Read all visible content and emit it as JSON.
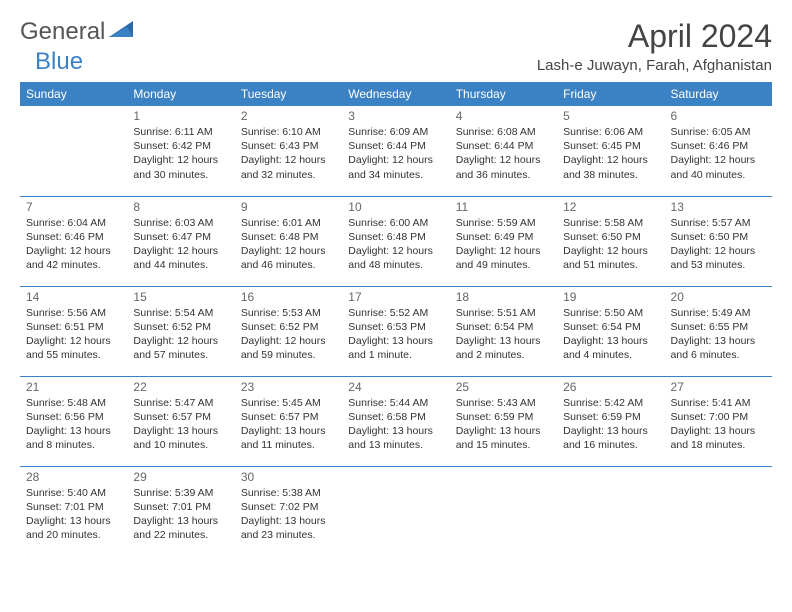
{
  "logo": {
    "text1": "General",
    "text2": "Blue"
  },
  "title": "April 2024",
  "location": "Lash-e Juwayn, Farah, Afghanistan",
  "colors": {
    "header_bg": "#3b82c4",
    "header_text": "#ffffff",
    "border": "#3b82c4",
    "text": "#333333",
    "logo_gray": "#555555",
    "logo_blue": "#3b82c4"
  },
  "day_headers": [
    "Sunday",
    "Monday",
    "Tuesday",
    "Wednesday",
    "Thursday",
    "Friday",
    "Saturday"
  ],
  "weeks": [
    [
      null,
      {
        "num": "1",
        "sunrise": "6:11 AM",
        "sunset": "6:42 PM",
        "daylight": "12 hours and 30 minutes."
      },
      {
        "num": "2",
        "sunrise": "6:10 AM",
        "sunset": "6:43 PM",
        "daylight": "12 hours and 32 minutes."
      },
      {
        "num": "3",
        "sunrise": "6:09 AM",
        "sunset": "6:44 PM",
        "daylight": "12 hours and 34 minutes."
      },
      {
        "num": "4",
        "sunrise": "6:08 AM",
        "sunset": "6:44 PM",
        "daylight": "12 hours and 36 minutes."
      },
      {
        "num": "5",
        "sunrise": "6:06 AM",
        "sunset": "6:45 PM",
        "daylight": "12 hours and 38 minutes."
      },
      {
        "num": "6",
        "sunrise": "6:05 AM",
        "sunset": "6:46 PM",
        "daylight": "12 hours and 40 minutes."
      }
    ],
    [
      {
        "num": "7",
        "sunrise": "6:04 AM",
        "sunset": "6:46 PM",
        "daylight": "12 hours and 42 minutes."
      },
      {
        "num": "8",
        "sunrise": "6:03 AM",
        "sunset": "6:47 PM",
        "daylight": "12 hours and 44 minutes."
      },
      {
        "num": "9",
        "sunrise": "6:01 AM",
        "sunset": "6:48 PM",
        "daylight": "12 hours and 46 minutes."
      },
      {
        "num": "10",
        "sunrise": "6:00 AM",
        "sunset": "6:48 PM",
        "daylight": "12 hours and 48 minutes."
      },
      {
        "num": "11",
        "sunrise": "5:59 AM",
        "sunset": "6:49 PM",
        "daylight": "12 hours and 49 minutes."
      },
      {
        "num": "12",
        "sunrise": "5:58 AM",
        "sunset": "6:50 PM",
        "daylight": "12 hours and 51 minutes."
      },
      {
        "num": "13",
        "sunrise": "5:57 AM",
        "sunset": "6:50 PM",
        "daylight": "12 hours and 53 minutes."
      }
    ],
    [
      {
        "num": "14",
        "sunrise": "5:56 AM",
        "sunset": "6:51 PM",
        "daylight": "12 hours and 55 minutes."
      },
      {
        "num": "15",
        "sunrise": "5:54 AM",
        "sunset": "6:52 PM",
        "daylight": "12 hours and 57 minutes."
      },
      {
        "num": "16",
        "sunrise": "5:53 AM",
        "sunset": "6:52 PM",
        "daylight": "12 hours and 59 minutes."
      },
      {
        "num": "17",
        "sunrise": "5:52 AM",
        "sunset": "6:53 PM",
        "daylight": "13 hours and 1 minute."
      },
      {
        "num": "18",
        "sunrise": "5:51 AM",
        "sunset": "6:54 PM",
        "daylight": "13 hours and 2 minutes."
      },
      {
        "num": "19",
        "sunrise": "5:50 AM",
        "sunset": "6:54 PM",
        "daylight": "13 hours and 4 minutes."
      },
      {
        "num": "20",
        "sunrise": "5:49 AM",
        "sunset": "6:55 PM",
        "daylight": "13 hours and 6 minutes."
      }
    ],
    [
      {
        "num": "21",
        "sunrise": "5:48 AM",
        "sunset": "6:56 PM",
        "daylight": "13 hours and 8 minutes."
      },
      {
        "num": "22",
        "sunrise": "5:47 AM",
        "sunset": "6:57 PM",
        "daylight": "13 hours and 10 minutes."
      },
      {
        "num": "23",
        "sunrise": "5:45 AM",
        "sunset": "6:57 PM",
        "daylight": "13 hours and 11 minutes."
      },
      {
        "num": "24",
        "sunrise": "5:44 AM",
        "sunset": "6:58 PM",
        "daylight": "13 hours and 13 minutes."
      },
      {
        "num": "25",
        "sunrise": "5:43 AM",
        "sunset": "6:59 PM",
        "daylight": "13 hours and 15 minutes."
      },
      {
        "num": "26",
        "sunrise": "5:42 AM",
        "sunset": "6:59 PM",
        "daylight": "13 hours and 16 minutes."
      },
      {
        "num": "27",
        "sunrise": "5:41 AM",
        "sunset": "7:00 PM",
        "daylight": "13 hours and 18 minutes."
      }
    ],
    [
      {
        "num": "28",
        "sunrise": "5:40 AM",
        "sunset": "7:01 PM",
        "daylight": "13 hours and 20 minutes."
      },
      {
        "num": "29",
        "sunrise": "5:39 AM",
        "sunset": "7:01 PM",
        "daylight": "13 hours and 22 minutes."
      },
      {
        "num": "30",
        "sunrise": "5:38 AM",
        "sunset": "7:02 PM",
        "daylight": "13 hours and 23 minutes."
      },
      null,
      null,
      null,
      null
    ]
  ],
  "labels": {
    "sunrise": "Sunrise:",
    "sunset": "Sunset:",
    "daylight": "Daylight:"
  }
}
